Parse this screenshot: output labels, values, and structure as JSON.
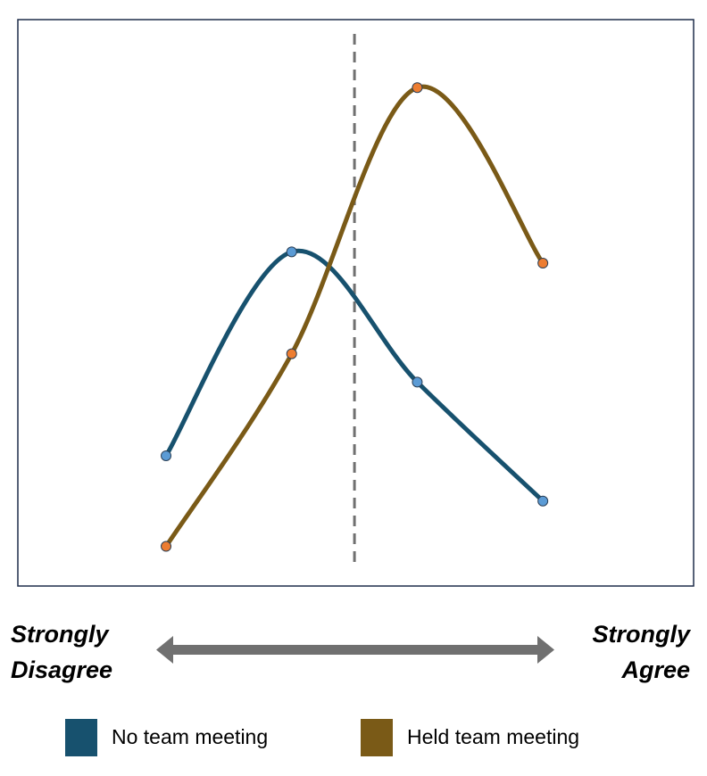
{
  "chart_data": {
    "type": "line",
    "x": [
      1,
      2,
      3,
      4
    ],
    "xlim": [
      -0.18,
      5.2
    ],
    "ylim": [
      0,
      100
    ],
    "reference_x": 2.5,
    "series": [
      {
        "name": "No team meeting",
        "color": "#17516e",
        "marker_color": "#5b9bd5",
        "values": [
          23,
          59,
          36,
          15
        ]
      },
      {
        "name": "Held team meeting",
        "color": "#7a5a17",
        "marker_color": "#ed7d31",
        "values": [
          7,
          41,
          88,
          57
        ]
      }
    ],
    "left_label": [
      "Strongly",
      "Disagree"
    ],
    "right_label": [
      "Strongly",
      "Agree"
    ]
  }
}
